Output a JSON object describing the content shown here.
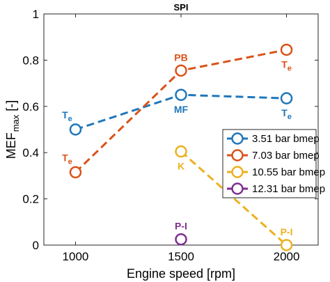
{
  "chart_data": {
    "type": "line",
    "title": "SPI",
    "xlabel": "Engine speed [rpm]",
    "ylabel": "MEF",
    "ylabel_sub": "max",
    "ylabel_unit": "[-]",
    "xlim": [
      850,
      2150
    ],
    "ylim": [
      0,
      1
    ],
    "xticks": [
      1000,
      1500,
      2000
    ],
    "yticks": [
      0,
      0.2,
      0.4,
      0.6,
      0.8,
      1
    ],
    "ytick_labels": [
      "0",
      "0.2",
      "0.4",
      "0.6",
      "0.8",
      "1"
    ],
    "grid": false,
    "legend_position": "center-right",
    "series": [
      {
        "name": "3.51 bar bmep",
        "color": "#1f77bb",
        "x": [
          1000,
          1500,
          2000
        ],
        "y": [
          0.5,
          0.65,
          0.635
        ],
        "labels": [
          {
            "text": "T",
            "sub": "e",
            "x": 1000,
            "y": 0.5,
            "pos": "above-left"
          },
          {
            "text": "MF",
            "sub": "",
            "x": 1500,
            "y": 0.65,
            "pos": "below"
          },
          {
            "text": "T",
            "sub": "e",
            "x": 2000,
            "y": 0.635,
            "pos": "below"
          }
        ]
      },
      {
        "name": "7.03 bar bmep",
        "color": "#d95319",
        "x": [
          1000,
          1500,
          2000
        ],
        "y": [
          0.315,
          0.755,
          0.845
        ],
        "labels": [
          {
            "text": "T",
            "sub": "e",
            "x": 1000,
            "y": 0.315,
            "pos": "above-left"
          },
          {
            "text": "PB",
            "sub": "",
            "x": 1500,
            "y": 0.755,
            "pos": "above"
          },
          {
            "text": "T",
            "sub": "e",
            "x": 2000,
            "y": 0.845,
            "pos": "below"
          }
        ]
      },
      {
        "name": "10.55 bar bmep",
        "color": "#edb120",
        "x": [
          1500,
          2000
        ],
        "y": [
          0.405,
          0.0
        ],
        "labels": [
          {
            "text": "K",
            "sub": "",
            "x": 1500,
            "y": 0.405,
            "pos": "below"
          },
          {
            "text": "P-I",
            "sub": "",
            "x": 2000,
            "y": 0.0,
            "pos": "above"
          }
        ]
      },
      {
        "name": "12.31 bar bmep",
        "color": "#7e2f8e",
        "x": [
          1500
        ],
        "y": [
          0.025
        ],
        "labels": [
          {
            "text": "P-I",
            "sub": "",
            "x": 1500,
            "y": 0.025,
            "pos": "above"
          }
        ]
      }
    ]
  }
}
